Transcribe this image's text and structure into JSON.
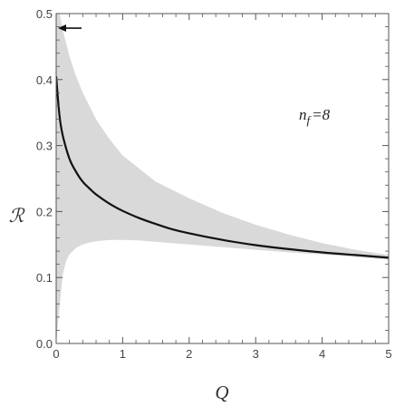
{
  "chart_data": {
    "type": "line",
    "xlabel": "Q",
    "ylabel": "ℛ",
    "xlim": [
      0,
      5
    ],
    "ylim": [
      0,
      0.5
    ],
    "x_ticks": [
      0,
      1,
      2,
      3,
      4,
      5
    ],
    "y_ticks": [
      0.0,
      0.1,
      0.2,
      0.3,
      0.4,
      0.5
    ],
    "x_tick_labels": [
      "0",
      "1",
      "2",
      "3",
      "4",
      "5"
    ],
    "y_tick_labels": [
      "0.0",
      "0.1",
      "0.2",
      "0.3",
      "0.4",
      "0.5"
    ],
    "grid": false,
    "annotation": "n f =8",
    "annotation_parts": {
      "base": "n",
      "sub": "f",
      "rest": "=8"
    },
    "arrow_marker": {
      "x": 0,
      "y": 0.478
    },
    "series": [
      {
        "x": [
          0.0,
          0.05,
          0.1,
          0.2,
          0.3,
          0.4,
          0.5,
          0.6,
          0.8,
          1.0,
          1.25,
          1.5,
          1.75,
          2.0,
          2.5,
          3.0,
          3.5,
          4.0,
          4.5,
          5.0
        ],
        "y": [
          0.405,
          0.345,
          0.315,
          0.28,
          0.26,
          0.245,
          0.235,
          0.226,
          0.212,
          0.201,
          0.19,
          0.181,
          0.173,
          0.167,
          0.157,
          0.149,
          0.143,
          0.138,
          0.134,
          0.13
        ]
      }
    ],
    "uncertainty_band": {
      "x": [
        0.0,
        0.05,
        0.1,
        0.15,
        0.2,
        0.3,
        0.4,
        0.5,
        0.6,
        0.8,
        1.0,
        1.25,
        1.5,
        2.0,
        2.5,
        3.0,
        3.5,
        4.0,
        4.5,
        5.0
      ],
      "upper": [
        0.5,
        0.5,
        0.475,
        0.455,
        0.435,
        0.405,
        0.38,
        0.36,
        0.34,
        0.31,
        0.285,
        0.265,
        0.245,
        0.22,
        0.198,
        0.18,
        0.165,
        0.152,
        0.142,
        0.134
      ],
      "lower": [
        0.0,
        0.055,
        0.105,
        0.125,
        0.135,
        0.145,
        0.15,
        0.153,
        0.155,
        0.157,
        0.157,
        0.156,
        0.154,
        0.15,
        0.146,
        0.142,
        0.138,
        0.135,
        0.131,
        0.127
      ]
    },
    "colors": {
      "curve": "#111111",
      "band": "#d9d9d9",
      "frame": "#555555"
    }
  }
}
